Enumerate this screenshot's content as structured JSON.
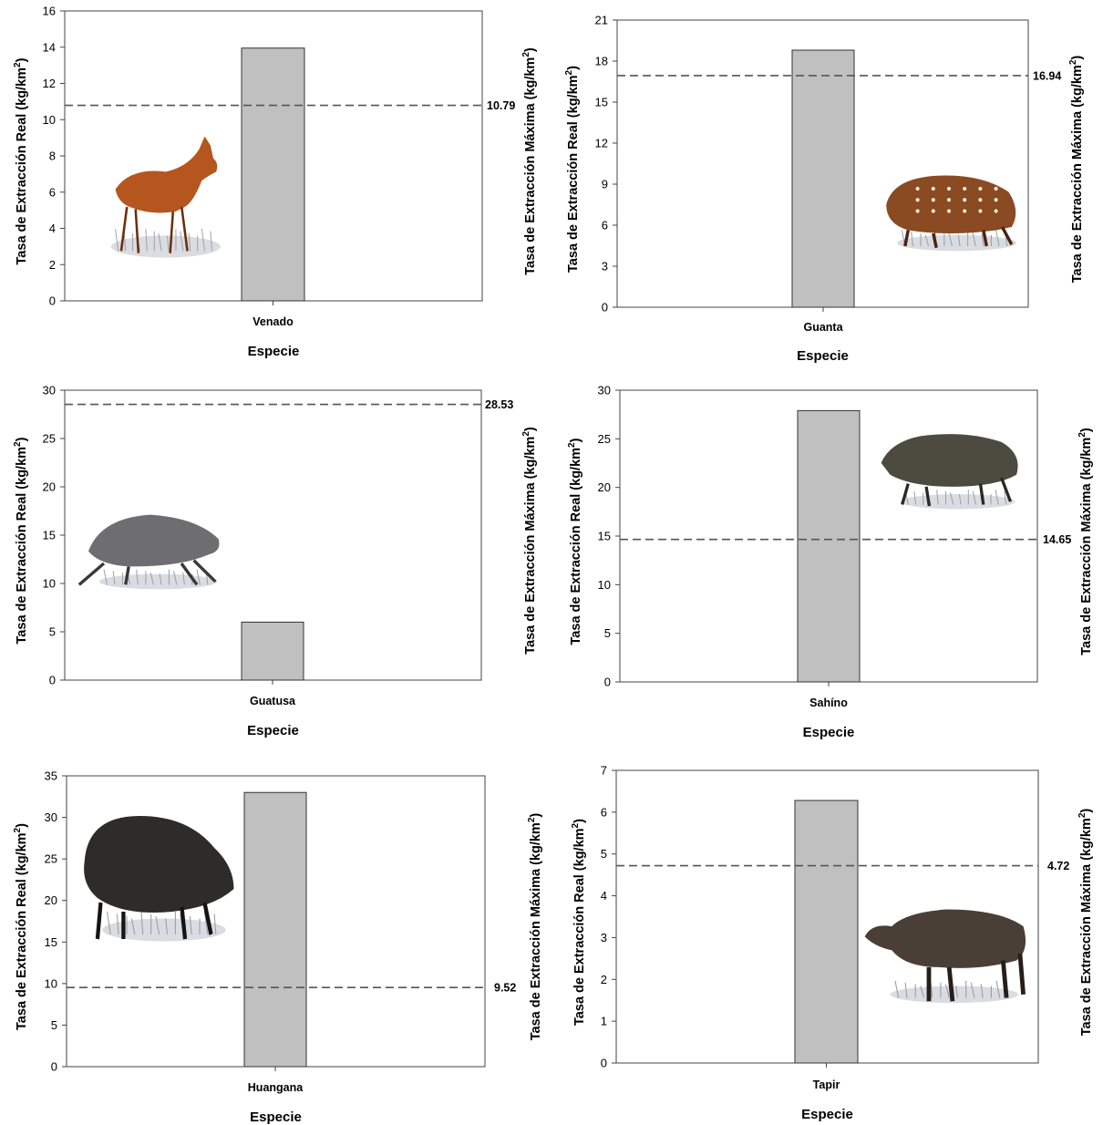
{
  "chart_data": [
    {
      "type": "bar",
      "categories": [
        "Venado"
      ],
      "values": [
        13.95
      ],
      "xlabel": "Especie",
      "ylabel_left": "Tasa de Extracción Real (kg/km",
      "ylabel_right": "Tasa de Extracción Máxima (kg/km",
      "ylabel_unit_exp": "2",
      "ylabel_close": ")",
      "ylim": [
        0,
        16
      ],
      "yticks": [
        "0",
        "2",
        "4",
        "6",
        "8",
        "10",
        "12",
        "14",
        "16"
      ],
      "reference_line": {
        "value": 10.79,
        "label": "10.79"
      },
      "image": "deer-illustration",
      "colors": {
        "bar": "#c0c0c0",
        "line": "#555555"
      }
    },
    {
      "type": "bar",
      "categories": [
        "Guanta"
      ],
      "values": [
        18.8
      ],
      "xlabel": "Especie",
      "ylabel_left": "Tasa de Extracción Real (kg/km",
      "ylabel_right": "Tasa de Extracción Máxima (kg/km",
      "ylabel_unit_exp": "2",
      "ylabel_close": ")",
      "ylim": [
        0,
        21
      ],
      "yticks": [
        "0",
        "3",
        "6",
        "9",
        "12",
        "15",
        "18",
        "21"
      ],
      "reference_line": {
        "value": 16.94,
        "label": "16.94"
      },
      "image": "paca-illustration",
      "colors": {
        "bar": "#c0c0c0",
        "line": "#555555"
      }
    },
    {
      "type": "bar",
      "categories": [
        "Guatusa"
      ],
      "values": [
        6.0
      ],
      "xlabel": "Especie",
      "ylabel_left": "Tasa de Extracción Real (kg/km",
      "ylabel_right": "Tasa de Extracción Máxima (kg/km",
      "ylabel_unit_exp": "2",
      "ylabel_close": ")",
      "ylim": [
        0,
        30
      ],
      "yticks": [
        "0",
        "5",
        "10",
        "15",
        "20",
        "25",
        "30"
      ],
      "reference_line": {
        "value": 28.53,
        "label": "28.53"
      },
      "image": "agouti-illustration",
      "colors": {
        "bar": "#c0c0c0",
        "line": "#555555"
      }
    },
    {
      "type": "bar",
      "categories": [
        "Sahíno"
      ],
      "values": [
        27.9
      ],
      "xlabel": "Especie",
      "ylabel_left": "Tasa de Extracción Real (kg/km",
      "ylabel_right": "Tasa de Extracción Máxima (kg/km",
      "ylabel_unit_exp": "2",
      "ylabel_close": ")",
      "ylim": [
        0,
        30
      ],
      "yticks": [
        "0",
        "5",
        "10",
        "15",
        "20",
        "25",
        "30"
      ],
      "reference_line": {
        "value": 14.65,
        "label": "14.65"
      },
      "image": "collared-peccary-illustration",
      "colors": {
        "bar": "#c0c0c0",
        "line": "#555555"
      }
    },
    {
      "type": "bar",
      "categories": [
        "Huangana"
      ],
      "values": [
        33.0
      ],
      "xlabel": "Especie",
      "ylabel_left": "Tasa de Extracción Real (kg/km",
      "ylabel_right": "Tasa de Extracción Máxima (kg/km",
      "ylabel_unit_exp": "2",
      "ylabel_close": ")",
      "ylim": [
        0,
        35
      ],
      "yticks": [
        "0",
        "5",
        "10",
        "15",
        "20",
        "25",
        "30",
        "35"
      ],
      "reference_line": {
        "value": 9.52,
        "label": "9.52"
      },
      "image": "white-lipped-peccary-illustration",
      "colors": {
        "bar": "#c0c0c0",
        "line": "#555555"
      }
    },
    {
      "type": "bar",
      "categories": [
        "Tapir"
      ],
      "values": [
        6.28
      ],
      "xlabel": "Especie",
      "ylabel_left": "Tasa de Extracción Real (kg/km",
      "ylabel_right": "Tasa de Extracción Máxima (kg/km",
      "ylabel_unit_exp": "2",
      "ylabel_close": ")",
      "ylim": [
        0,
        7
      ],
      "yticks": [
        "0",
        "1",
        "2",
        "3",
        "4",
        "5",
        "6",
        "7"
      ],
      "reference_line": {
        "value": 4.72,
        "label": "4.72"
      },
      "image": "tapir-illustration",
      "colors": {
        "bar": "#c0c0c0",
        "line": "#555555"
      }
    }
  ]
}
